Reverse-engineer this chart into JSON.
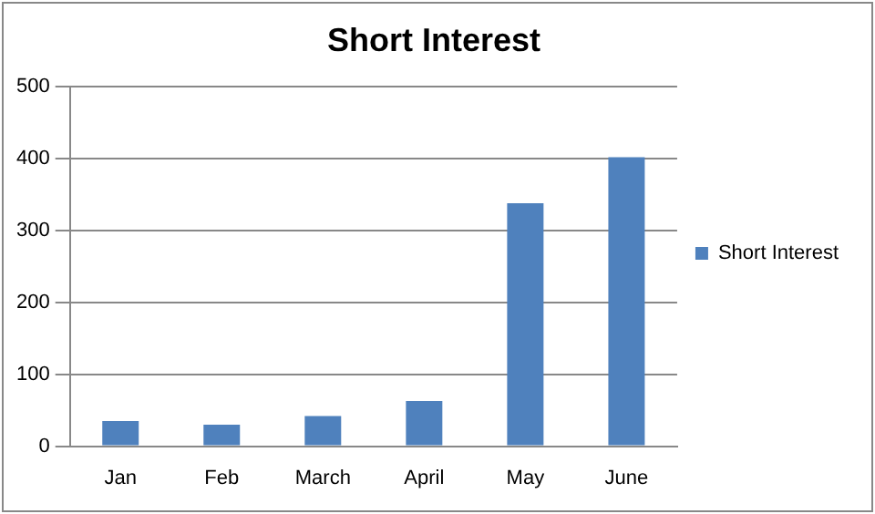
{
  "chart_data": {
    "type": "bar",
    "title": "Short Interest",
    "categories": [
      "Jan",
      "Feb",
      "March",
      "April",
      "May",
      "June"
    ],
    "series": [
      {
        "name": "Short Interest",
        "color": "#4f81bd",
        "values": [
          35,
          30,
          42,
          63,
          338,
          402
        ]
      }
    ],
    "ylim": [
      0,
      500
    ],
    "yticks": [
      0,
      100,
      200,
      300,
      400,
      500
    ],
    "grid": "y",
    "legend": "right"
  }
}
